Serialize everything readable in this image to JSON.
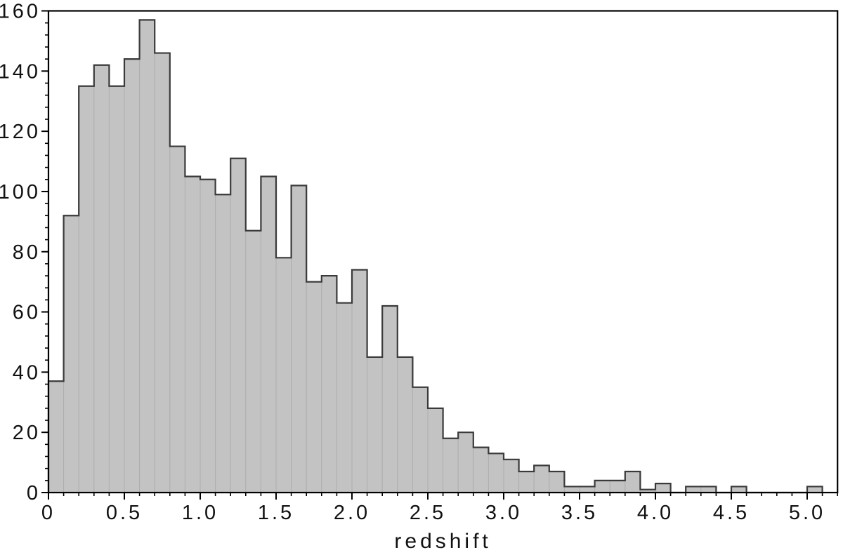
{
  "figure": {
    "background": "#ffffff"
  },
  "chart_data": {
    "type": "bar",
    "subtype": "histogram",
    "title": "",
    "xlabel": "redshift",
    "ylabel": "",
    "bin_start": 0,
    "bin_width": 0.1,
    "values": [
      37,
      92,
      135,
      142,
      135,
      144,
      157,
      146,
      115,
      105,
      104,
      99,
      111,
      87,
      105,
      78,
      102,
      70,
      72,
      63,
      74,
      45,
      62,
      45,
      35,
      28,
      18,
      20,
      15,
      13,
      11,
      7,
      9,
      7,
      2,
      2,
      4,
      4,
      7,
      1,
      3,
      0,
      2,
      2,
      0,
      2,
      0,
      0,
      0,
      0,
      2
    ],
    "xlim": [
      0,
      5.2
    ],
    "ylim": [
      0,
      160
    ],
    "x_major_ticks": [
      0,
      0.5,
      1.0,
      1.5,
      2.0,
      2.5,
      3.0,
      3.5,
      4.0,
      4.5,
      5.0
    ],
    "x_major_tick_labels": [
      "0",
      "0.5",
      "1.0",
      "1.5",
      "2.0",
      "2.5",
      "3.0",
      "3.5",
      "4.0",
      "4.5",
      "5.0"
    ],
    "x_minor_tick_step": 0.1,
    "y_major_ticks": [
      0,
      20,
      40,
      60,
      80,
      100,
      120,
      140,
      160
    ],
    "y_major_tick_labels": [
      "0",
      "20",
      "40",
      "60",
      "80",
      "100",
      "120",
      "140",
      "160"
    ],
    "y_minor_tick_step": 4,
    "grid": false,
    "legend": null,
    "colors": {
      "bar_fill": "#c3c3c3",
      "bar_divider": "#aeaeae",
      "outline": "#3a3a3a",
      "axis": "#000000",
      "text": "#111111"
    }
  }
}
